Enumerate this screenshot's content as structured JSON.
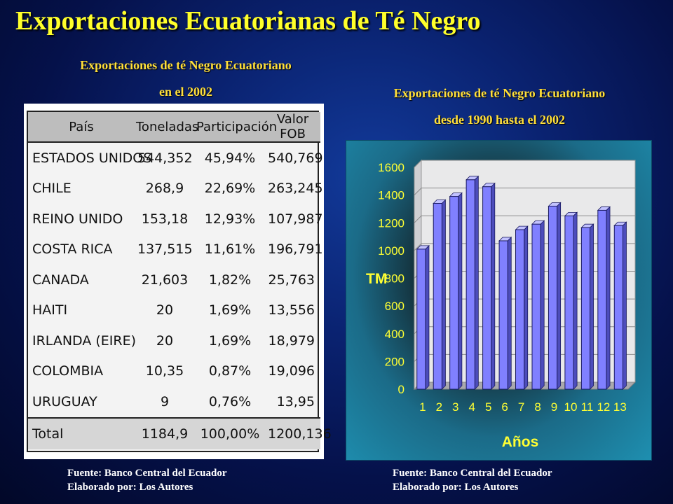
{
  "page_title": "Exportaciones Ecuatorianas de Té Negro",
  "left_subtitle": [
    "Exportaciones de té Negro Ecuatoriano",
    "en el 2002"
  ],
  "right_subtitle": [
    "Exportaciones de té Negro Ecuatoriano",
    "desde 1990 hasta el 2002"
  ],
  "table": {
    "headers": [
      "País",
      "Toneladas",
      "Participación",
      "Valor FOB"
    ],
    "rows": [
      [
        "ESTADOS UNIDOS",
        "544,352",
        "45,94%",
        "540,769"
      ],
      [
        "CHILE",
        "268,9",
        "22,69%",
        "263,245"
      ],
      [
        "REINO UNIDO",
        "153,18",
        "12,93%",
        "107,987"
      ],
      [
        "COSTA RICA",
        "137,515",
        "11,61%",
        "196,791"
      ],
      [
        "CANADA",
        "21,603",
        "1,82%",
        "25,763"
      ],
      [
        "HAITI",
        "20",
        "1,69%",
        "13,556"
      ],
      [
        "IRLANDA (EIRE)",
        "20",
        "1,69%",
        "18,979"
      ],
      [
        "COLOMBIA",
        "10,35",
        "0,87%",
        "19,096"
      ],
      [
        "URUGUAY",
        "9",
        "0,76%",
        "13,95"
      ]
    ],
    "total": [
      "Total",
      "1184,9",
      "100,00%",
      "1200,136"
    ]
  },
  "chart_data": {
    "type": "bar",
    "categories": [
      "1",
      "2",
      "3",
      "4",
      "5",
      "6",
      "7",
      "8",
      "9",
      "10",
      "11",
      "12",
      "13"
    ],
    "values": [
      1010,
      1340,
      1390,
      1510,
      1460,
      1070,
      1150,
      1190,
      1320,
      1250,
      1165,
      1290,
      1180
    ],
    "xlabel": "Años",
    "ylabel": "TM",
    "ylim": [
      0,
      1600
    ],
    "yticks": [
      0,
      200,
      400,
      600,
      800,
      1000,
      1200,
      1400,
      1600
    ],
    "grid": true,
    "bar_color": "#8080ff",
    "tick_color": "#ffff33"
  },
  "source_left": [
    "Fuente: Banco Central del Ecuador",
    "Elaborado por: Los Autores"
  ],
  "source_right": [
    "Fuente: Banco Central del Ecuador",
    "Elaborado por: Los Autores"
  ]
}
